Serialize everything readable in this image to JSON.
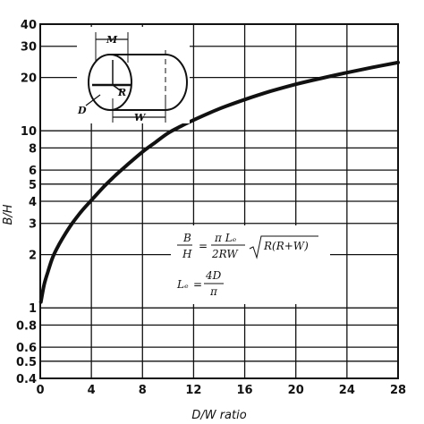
{
  "chart_data": {
    "type": "line",
    "xlabel": "D/W ratio",
    "ylabel": "B/H",
    "xlim": [
      0,
      28
    ],
    "ylim": [
      0.4,
      40
    ],
    "yscale": "log",
    "grid": true,
    "x_ticks": [
      "0",
      "4",
      "8",
      "12",
      "16",
      "20",
      "24",
      "28"
    ],
    "y_ticks": [
      "0.4",
      "0.5",
      "0.6",
      "0.8",
      "1",
      "2",
      "3",
      "4",
      "5",
      "6",
      "8",
      "10",
      "20",
      "30",
      "40"
    ],
    "series": [
      {
        "name": "",
        "x": [
          0.05,
          0.3,
          0.6,
          1,
          1.5,
          2,
          2.5,
          3,
          3.5,
          4,
          5,
          6,
          7,
          8,
          9,
          10,
          11,
          12,
          14,
          16,
          18,
          20,
          22,
          24,
          26,
          28
        ],
        "y": [
          1.08,
          1.35,
          1.6,
          1.95,
          2.3,
          2.65,
          3.0,
          3.35,
          3.7,
          4.05,
          4.85,
          5.7,
          6.6,
          7.6,
          8.6,
          9.7,
          10.6,
          11.5,
          13.3,
          15.0,
          16.7,
          18.3,
          19.8,
          21.3,
          22.8,
          24.3
        ]
      }
    ],
    "annotation": {
      "formula_b": "B",
      "formula_h": "H",
      "equals": "=",
      "num": "π Lₑ",
      "den": "2RW",
      "sqrt": "R(R+W)",
      "le_lhs": "Lₑ",
      "le_num": "4D",
      "le_den": "π"
    },
    "diagram_labels": [
      "M",
      "R",
      "D",
      "W"
    ]
  }
}
